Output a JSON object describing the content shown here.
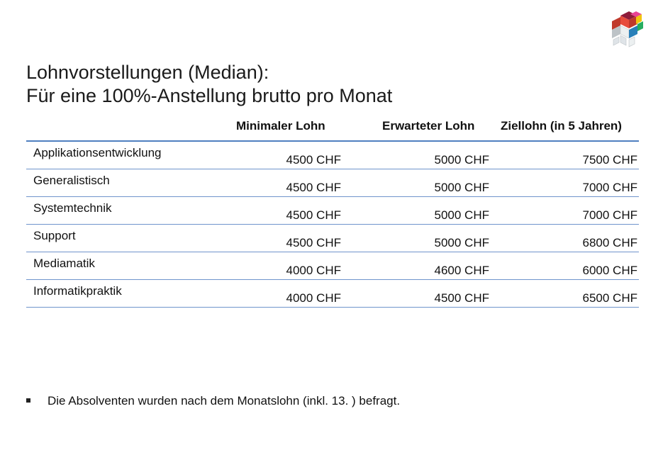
{
  "title": {
    "line1": "Lohnvorstellungen (Median):",
    "line2": "Für eine 100%-Anstellung brutto pro Monat"
  },
  "logo": {
    "icon": "colored-cube-logo-icon",
    "colors": [
      "#c0392b",
      "#8e1b3a",
      "#e84393",
      "#f1c40f",
      "#27ae60",
      "#2980b9",
      "#bdc3c7"
    ]
  },
  "table": {
    "headers": [
      "Minimaler Lohn",
      "Erwarteter Lohn",
      "Ziellohn (in 5 Jahren)"
    ],
    "rows": [
      {
        "label": "Applikationsentwicklung",
        "values": [
          "4500 CHF",
          "5000 CHF",
          "7500 CHF"
        ]
      },
      {
        "label": "Generalistisch",
        "values": [
          "4500 CHF",
          "5000 CHF",
          "7000 CHF"
        ]
      },
      {
        "label": "Systemtechnik",
        "values": [
          "4500 CHF",
          "5000 CHF",
          "7000 CHF"
        ]
      },
      {
        "label": "Support",
        "values": [
          "4500 CHF",
          "5000 CHF",
          "6800 CHF"
        ]
      },
      {
        "label": "Mediamatik",
        "values": [
          "4000 CHF",
          "4600 CHF",
          "6000 CHF"
        ]
      },
      {
        "label": "Informatikpraktik",
        "values": [
          "4000 CHF",
          "4500 CHF",
          "6500 CHF"
        ]
      }
    ],
    "rule_color": "#4f7fc0"
  },
  "footnote": {
    "text": "Die Absolventen wurden nach dem Monatslohn (inkl. 13. ) befragt."
  }
}
